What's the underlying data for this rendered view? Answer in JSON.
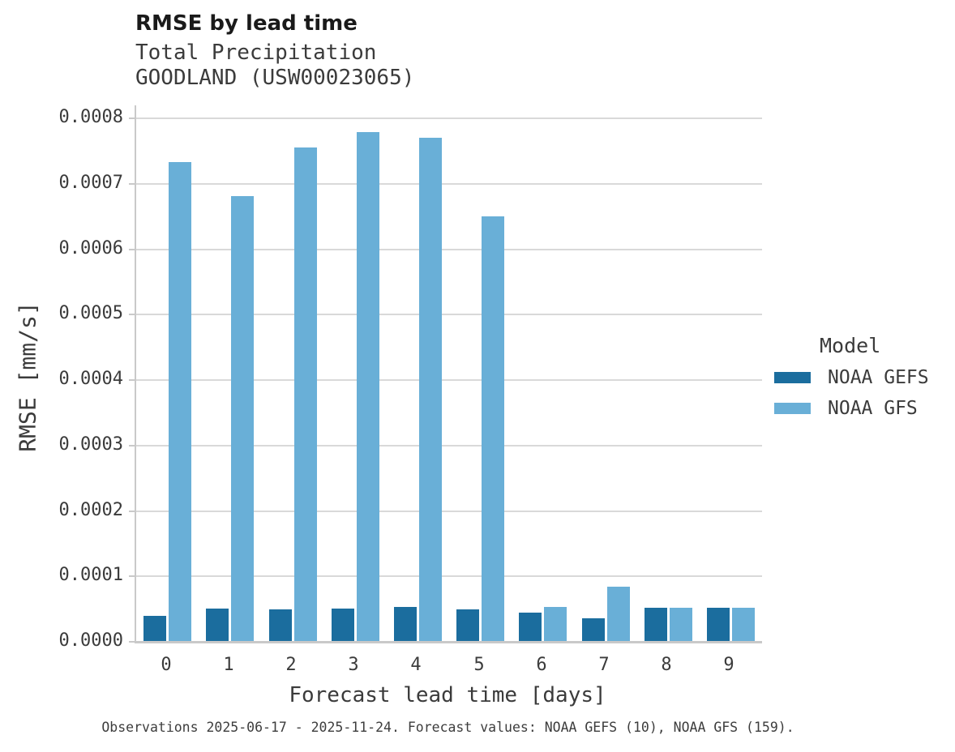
{
  "header": {
    "title": "RMSE by lead time",
    "subtitle1": "Total Precipitation",
    "subtitle2": "GOODLAND (USW00023065)"
  },
  "legend": {
    "title": "Model",
    "items": [
      {
        "label": "NOAA GEFS",
        "color": "#1b6d9e"
      },
      {
        "label": "NOAA GFS",
        "color": "#69afd7"
      }
    ]
  },
  "footer": {
    "caption": "Observations 2025-06-17 - 2025-11-24. Forecast values: NOAA GEFS (10), NOAA GFS (159)."
  },
  "chart_data": {
    "type": "bar",
    "title": "RMSE by lead time",
    "subtitle": [
      "Total Precipitation",
      "GOODLAND (USW00023065)"
    ],
    "categories": [
      0,
      1,
      2,
      3,
      4,
      5,
      6,
      7,
      8,
      9
    ],
    "series": [
      {
        "name": "NOAA GEFS",
        "color": "#1b6d9e",
        "values": [
          4e-05,
          5.1e-05,
          5e-05,
          5.1e-05,
          5.3e-05,
          4.9e-05,
          4.4e-05,
          3.6e-05,
          5.2e-05,
          5.2e-05
        ]
      },
      {
        "name": "NOAA GFS",
        "color": "#69afd7",
        "values": [
          0.000733,
          0.000681,
          0.000756,
          0.000779,
          0.00077,
          0.00065,
          5.3e-05,
          8.4e-05,
          5.2e-05,
          5.2e-05
        ]
      }
    ],
    "xlabel": "Forecast lead time [days]",
    "ylabel": "RMSE [mm/s]",
    "ylim": [
      0,
      0.00082
    ],
    "yticks": [
      0.0,
      0.0001,
      0.0002,
      0.0003,
      0.0004,
      0.0005,
      0.0006,
      0.0007,
      0.0008
    ],
    "ytick_labels": [
      "0.0000",
      "0.0001",
      "0.0002",
      "0.0003",
      "0.0004",
      "0.0005",
      "0.0006",
      "0.0007",
      "0.0008"
    ],
    "xtick_labels": [
      "0",
      "1",
      "2",
      "3",
      "4",
      "5",
      "6",
      "7",
      "8",
      "9"
    ],
    "grid": true,
    "legend_title": "Model",
    "legend_position": "right",
    "caption": "Observations 2025-06-17 - 2025-11-24. Forecast values: NOAA GEFS (10), NOAA GFS (159)."
  }
}
